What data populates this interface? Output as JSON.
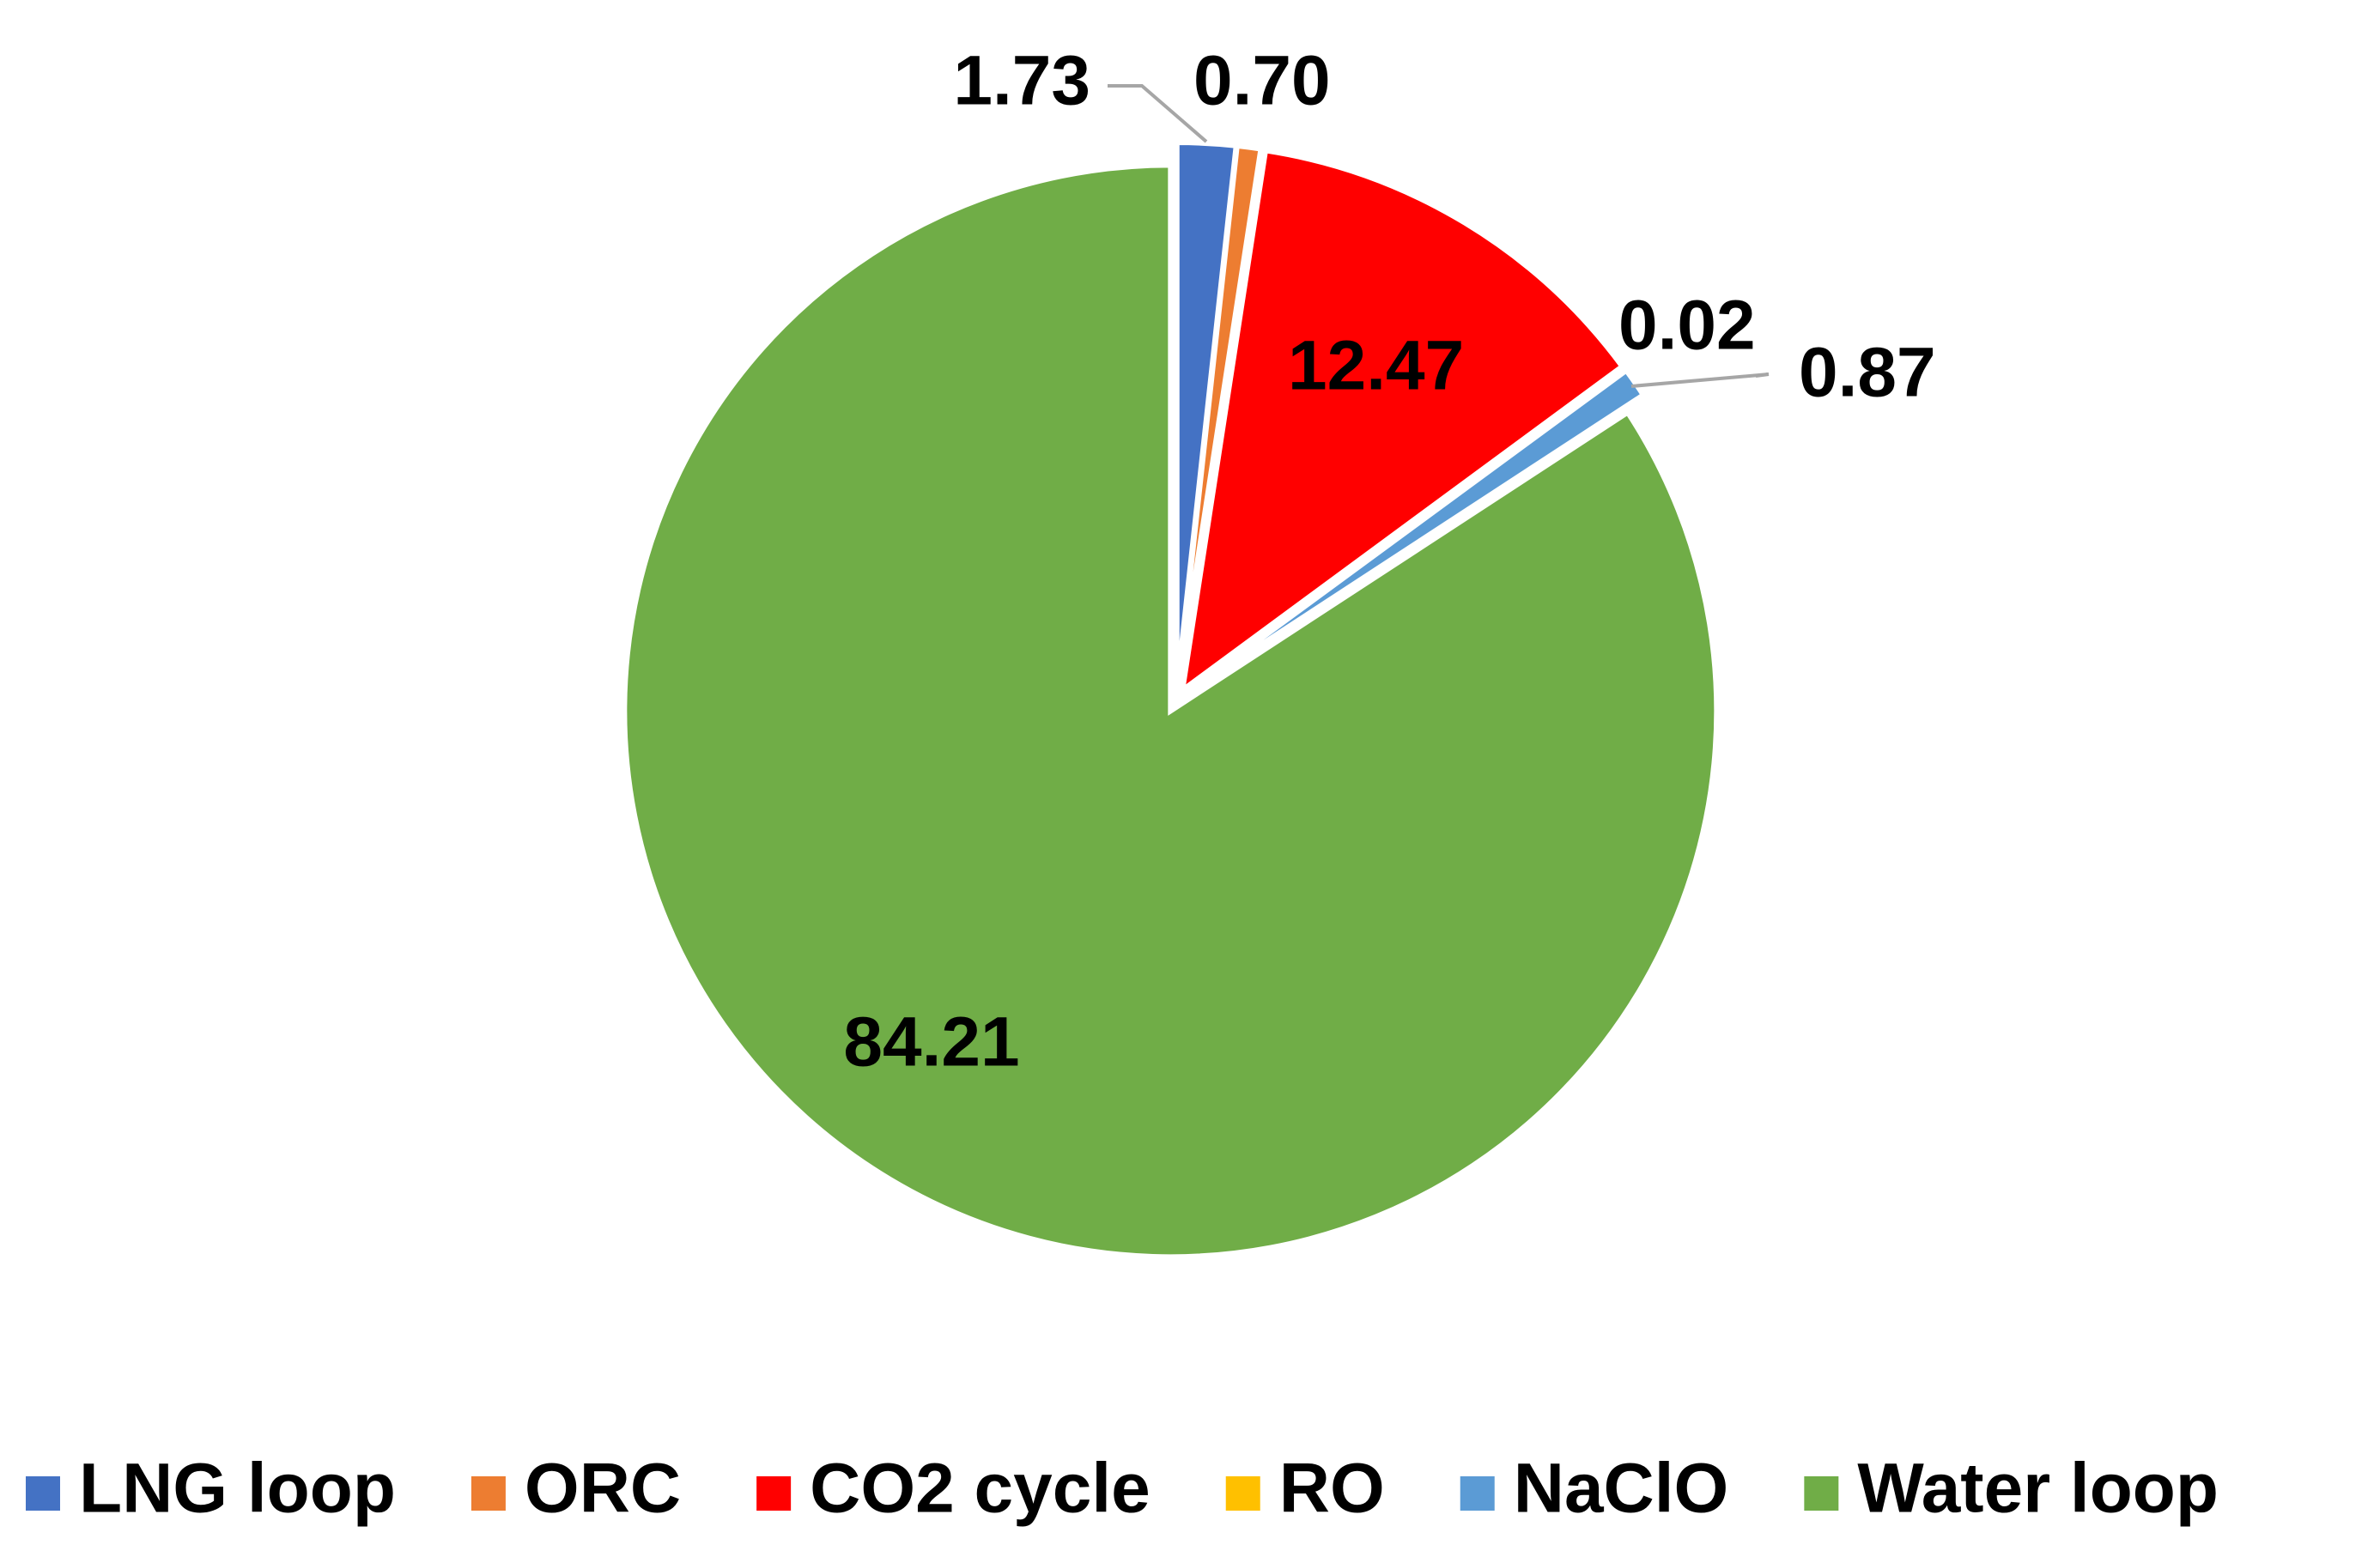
{
  "chart_data": {
    "type": "pie",
    "title": "",
    "categories": [
      "LNG loop",
      "ORC",
      "CO2 cycle",
      "RO",
      "NaClO",
      "Water loop"
    ],
    "values": [
      1.73,
      0.7,
      12.47,
      0.02,
      0.87,
      84.21
    ],
    "labels": [
      "1.73",
      "0.70",
      "12.47",
      "0.02",
      "0.87",
      "84.21"
    ],
    "colors": [
      "#4472C4",
      "#ED7D31",
      "#FF0000",
      "#FFC000",
      "#5B9BD5",
      "#70AD47"
    ],
    "start_angle_deg": 0,
    "direction": "clockwise",
    "legend_position": "bottom"
  }
}
